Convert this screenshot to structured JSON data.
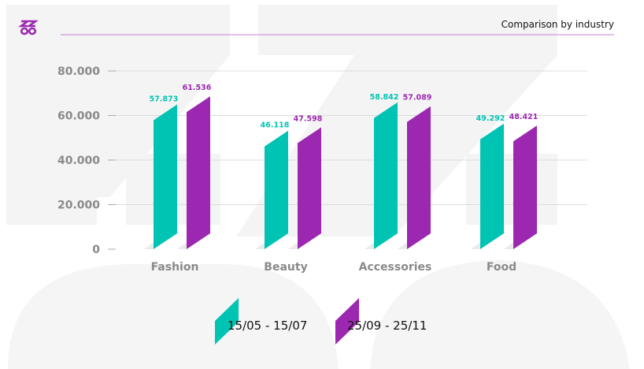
{
  "header": {
    "title": "Comparison by industry",
    "logo_text": "ZZ8"
  },
  "colors": {
    "series1": "#00c4b3",
    "series2": "#9c27b0",
    "rule": "#c97fd8",
    "axis_text": "#8a8a8a"
  },
  "chart_data": {
    "type": "bar",
    "title": "Comparison by industry",
    "categories": [
      "Fashion",
      "Beauty",
      "Accessories",
      "Food"
    ],
    "series": [
      {
        "name": "15/05 - 15/07",
        "values": [
          57873,
          46118,
          58842,
          49292
        ],
        "labels": [
          "57.873",
          "46.118",
          "58.842",
          "49.292"
        ]
      },
      {
        "name": "25/09 - 25/11",
        "values": [
          61536,
          47598,
          57089,
          48421
        ],
        "labels": [
          "61.536",
          "47.598",
          "57.089",
          "48.421"
        ]
      }
    ],
    "yticks": [
      "0",
      "20.000",
      "40.000",
      "60.000",
      "80.000"
    ],
    "ytick_values": [
      0,
      20000,
      40000,
      60000,
      80000
    ],
    "ylim": [
      0,
      80000
    ],
    "grid": true,
    "legend": "bottom-center"
  }
}
